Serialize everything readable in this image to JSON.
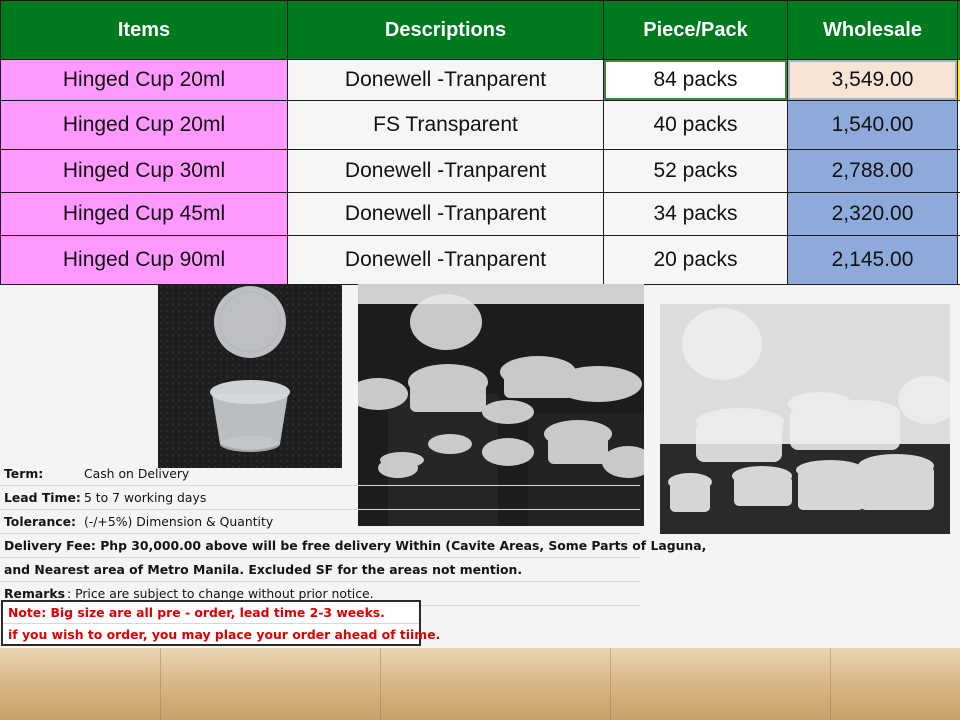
{
  "table": {
    "headers": {
      "items": "Items",
      "descriptions": "Descriptions",
      "piece_pack": "Piece/Pack",
      "wholesale": "Wholesale"
    },
    "rows": [
      {
        "item": "Hinged Cup 20ml",
        "description": "Donewell -Tranparent",
        "pieces": "84 packs",
        "wholesale": "3,549.00"
      },
      {
        "item": "Hinged Cup 20ml",
        "description": "FS Transparent",
        "pieces": "40 packs",
        "wholesale": "1,540.00"
      },
      {
        "item": "Hinged Cup 30ml",
        "description": "Donewell -Tranparent",
        "pieces": "52 packs",
        "wholesale": "2,788.00"
      },
      {
        "item": "Hinged Cup 45ml",
        "description": "Donewell -Tranparent",
        "pieces": "34 packs",
        "wholesale": "2,320.00"
      },
      {
        "item": "Hinged Cup 90ml",
        "description": "Donewell -Tranparent",
        "pieces": "20 packs",
        "wholesale": "2,145.00"
      }
    ]
  },
  "terms": {
    "term_label": "Term:",
    "term_value": "Cash on Delivery",
    "lead_label": "Lead Time:",
    "lead_value": "5 to 7 working days",
    "tolerance_label": "Tolerance:",
    "tolerance_value": "(-/+5%) Dimension & Quantity",
    "delivery_line1": "Delivery Fee: Php 30,000.00 above will be free delivery Within (Cavite Areas, Some Parts of Laguna,",
    "delivery_line2": "and Nearest area of Metro Manila. Excluded SF for the areas not mention.",
    "remarks_label": "Remarks",
    "remarks_value": ": Price are subject to change without prior notice."
  },
  "note": {
    "line1": "Note: Big size are all pre - order, lead time 2-3 weeks.",
    "line2": "if you wish to order, you may place your order ahead of tiime."
  },
  "colors": {
    "header_green": "#007a1f",
    "item_pink": "#ff99ff",
    "wholesale_blue": "#8eaadb",
    "note_red": "#e00000"
  },
  "photos": [
    {
      "name": "single-hinged-cup-photo"
    },
    {
      "name": "assorted-cups-on-black-cloth-photo"
    },
    {
      "name": "assorted-cups-group-photo"
    }
  ]
}
